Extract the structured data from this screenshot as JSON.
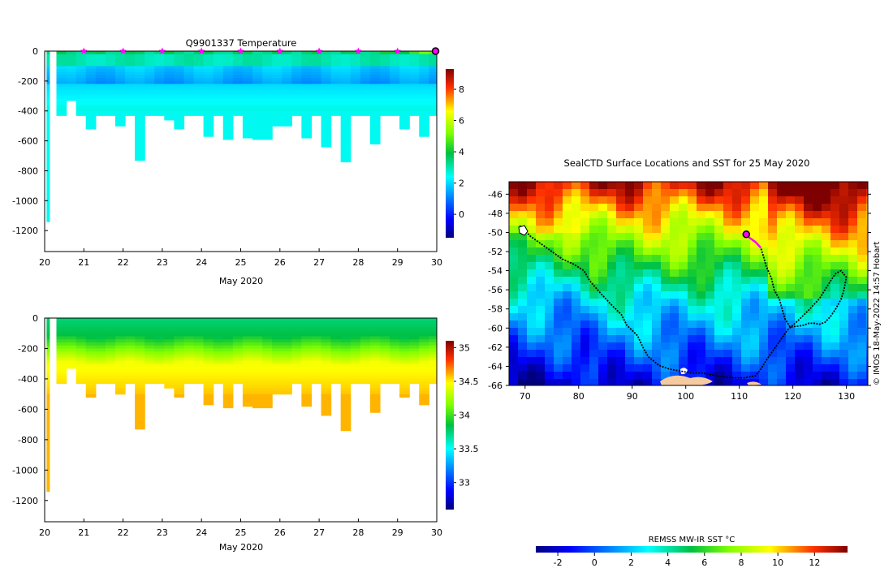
{
  "chart_data": [
    {
      "type": "heatmap",
      "title": "Q9901337  Temperature",
      "xlabel": "May 2020",
      "ylabel": "",
      "x_ticks": [
        "20",
        "21",
        "22",
        "23",
        "24",
        "25",
        "26",
        "27",
        "28",
        "29",
        "30"
      ],
      "xlim": [
        20,
        30
      ],
      "y_ticks": [
        "0",
        "-200",
        "-400",
        "-600",
        "-800",
        "-1000",
        "-1200"
      ],
      "ylim": [
        -1340,
        0
      ],
      "colorbar_ticks": [
        "0",
        "2",
        "4",
        "6",
        "8"
      ],
      "colorbar_range": [
        -1.5,
        9.3
      ],
      "surfacing_markers_day": [
        21,
        22,
        23,
        24,
        25,
        26,
        27,
        28,
        29
      ],
      "last_position_day": 30,
      "profile_days": [
        20.05,
        20.3,
        20.55,
        20.8,
        21.05,
        21.3,
        21.55,
        21.8,
        22.05,
        22.3,
        22.55,
        22.8,
        23.05,
        23.3,
        23.55,
        23.8,
        24.05,
        24.3,
        24.55,
        24.8,
        25.05,
        25.3,
        25.55,
        25.8,
        26.05,
        26.3,
        26.55,
        26.8,
        27.05,
        27.3,
        27.55,
        27.8,
        28.05,
        28.3,
        28.55,
        28.8,
        29.05,
        29.3,
        29.55,
        29.8
      ],
      "profile_max_depth": [
        -1140,
        -430,
        -330,
        -430,
        -520,
        -430,
        -430,
        -500,
        -430,
        -730,
        -430,
        -430,
        -460,
        -520,
        -430,
        -430,
        -570,
        -430,
        -590,
        -430,
        -580,
        -590,
        -590,
        -500,
        -500,
        -430,
        -580,
        -430,
        -640,
        -430,
        -740,
        -430,
        -430,
        -620,
        -430,
        -430,
        -520,
        -430,
        -570,
        -430
      ],
      "mixed_layer_temp": 3.5,
      "subsurface_min_temp": 1.3,
      "deep_temp": 2.5
    },
    {
      "type": "heatmap",
      "title": "",
      "xlabel": "May 2020",
      "ylabel": "",
      "x_ticks": [
        "20",
        "21",
        "22",
        "23",
        "24",
        "25",
        "26",
        "27",
        "28",
        "29",
        "30"
      ],
      "xlim": [
        20,
        30
      ],
      "y_ticks": [
        "0",
        "-200",
        "-400",
        "-600",
        "-800",
        "-1000",
        "-1200"
      ],
      "ylim": [
        -1340,
        0
      ],
      "colorbar_ticks": [
        "33",
        "33.5",
        "34",
        "34.5",
        "35"
      ],
      "colorbar_range": [
        32.6,
        35.1
      ],
      "surface_salinity": 33.75,
      "deep_salinity": 34.6
    },
    {
      "type": "heatmap",
      "title": "SealCTD Surface Locations and SST for 25 May 2020",
      "xlabel": "",
      "ylabel": "",
      "x_ticks": [
        "70",
        "80",
        "90",
        "100",
        "110",
        "120",
        "130"
      ],
      "xlim": [
        67,
        134
      ],
      "y_ticks": [
        "-46",
        "-48",
        "-50",
        "-52",
        "-54",
        "-56",
        "-58",
        "-60",
        "-62",
        "-64",
        "-66"
      ],
      "ylim": [
        -66,
        -44.7
      ],
      "colorbar_title": "REMSS MW-IR SST °C",
      "colorbar_ticks": [
        "-2",
        "0",
        "2",
        "4",
        "6",
        "8",
        "10",
        "12"
      ],
      "colorbar_range": [
        -3.2,
        13.8
      ],
      "side_label": "© IMOS 18-May-2022 14:57 Hobart",
      "track_lon": [
        69,
        70,
        71,
        73,
        75,
        77,
        79,
        81,
        82,
        84,
        86,
        88,
        89,
        91,
        92,
        93,
        95,
        97,
        99,
        101,
        103,
        105,
        107,
        109,
        111,
        113,
        114,
        115,
        116,
        117,
        118,
        119,
        121,
        123,
        125,
        126,
        127,
        128,
        129,
        130,
        129.5,
        129,
        128,
        127,
        126,
        125,
        124,
        123,
        122,
        121,
        119.5,
        118.5,
        118,
        117.5,
        116.5,
        116,
        115,
        114.5,
        114,
        113,
        112,
        111.3
      ],
      "track_lat": [
        -49.3,
        -49.8,
        -50.4,
        -51.2,
        -52.0,
        -52.8,
        -53.3,
        -54.0,
        -55.0,
        -56.3,
        -57.5,
        -58.6,
        -59.7,
        -60.8,
        -62.0,
        -63.0,
        -63.9,
        -64.3,
        -64.5,
        -64.7,
        -64.7,
        -64.9,
        -65.1,
        -65.2,
        -65.2,
        -65.0,
        -64.3,
        -63.4,
        -62.6,
        -61.8,
        -61.0,
        -60.2,
        -59.2,
        -58.1,
        -56.9,
        -56.0,
        -55.1,
        -54.3,
        -54.0,
        -54.7,
        -56.1,
        -57.0,
        -58.0,
        -58.8,
        -59.4,
        -59.6,
        -59.5,
        -59.5,
        -59.7,
        -59.8,
        -59.9,
        -59.0,
        -58.0,
        -57.0,
        -56.0,
        -54.8,
        -53.5,
        -52.5,
        -51.6,
        -51.0,
        -50.6,
        -50.3
      ],
      "current_lon": 111.3,
      "current_lat": -50.2
    }
  ]
}
